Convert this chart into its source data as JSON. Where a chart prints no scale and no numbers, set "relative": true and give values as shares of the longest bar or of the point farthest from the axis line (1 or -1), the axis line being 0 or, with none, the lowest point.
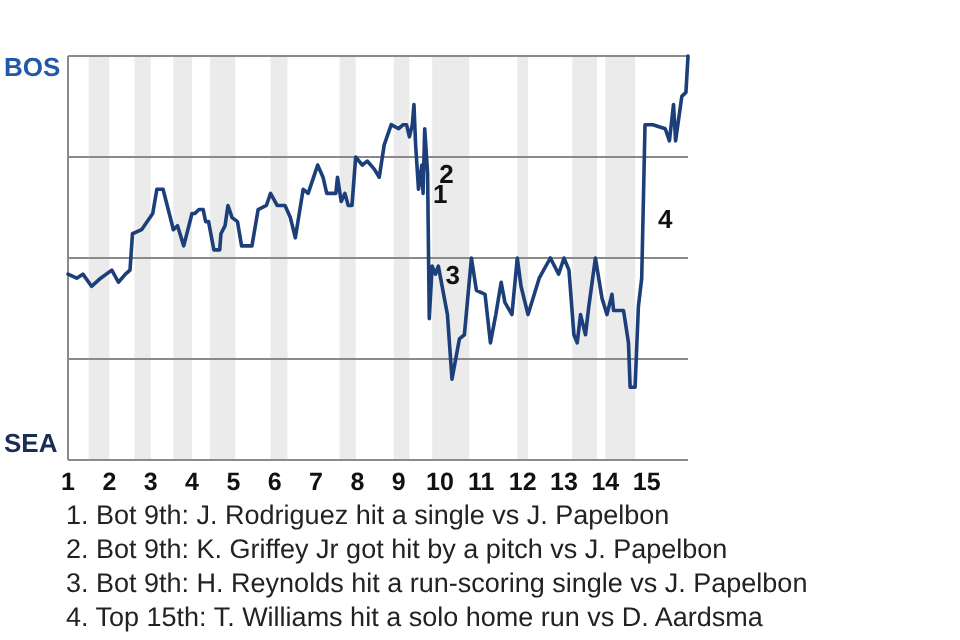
{
  "chart_data": {
    "type": "line",
    "relative": true,
    "grid": true,
    "xlim": [
      1,
      16
    ],
    "xticks": [
      1,
      2,
      3,
      4,
      5,
      6,
      7,
      8,
      9,
      10,
      11,
      12,
      13,
      14,
      15
    ],
    "bands": [
      {
        "axis": "x",
        "from": 1.5,
        "to": 2.0,
        "color": "#ebebeb"
      },
      {
        "axis": "x",
        "from": 2.61,
        "to": 3.0,
        "color": "#ebebeb"
      },
      {
        "axis": "x",
        "from": 3.55,
        "to": 4.0,
        "color": "#ebebeb"
      },
      {
        "axis": "x",
        "from": 4.43,
        "to": 5.05,
        "color": "#ebebeb"
      },
      {
        "axis": "x",
        "from": 5.9,
        "to": 6.31,
        "color": "#ebebeb"
      },
      {
        "axis": "x",
        "from": 7.57,
        "to": 7.96,
        "color": "#ebebeb"
      },
      {
        "axis": "x",
        "from": 8.88,
        "to": 9.26,
        "color": "#ebebeb"
      },
      {
        "axis": "x",
        "from": 9.81,
        "to": 10.71,
        "color": "#ebebeb"
      },
      {
        "axis": "x",
        "from": 11.87,
        "to": 12.13,
        "color": "#ebebeb"
      },
      {
        "axis": "x",
        "from": 13.2,
        "to": 13.8,
        "color": "#ebebeb"
      },
      {
        "axis": "x",
        "from": 14.0,
        "to": 14.72,
        "color": "#ebebeb"
      }
    ],
    "series": [
      {
        "color": "#1c3f7a",
        "x": [
          1.0,
          1.21,
          1.36,
          1.57,
          1.79,
          2.06,
          2.22,
          2.39,
          2.5,
          2.56,
          2.78,
          3.05,
          3.15,
          3.3,
          3.55,
          3.65,
          3.8,
          4.0,
          4.07,
          4.17,
          4.27,
          4.33,
          4.4,
          4.53,
          4.67,
          4.7,
          4.8,
          4.87,
          4.97,
          5.1,
          5.2,
          5.45,
          5.6,
          5.8,
          5.9,
          6.06,
          6.25,
          6.38,
          6.5,
          6.69,
          6.81,
          7.04,
          7.17,
          7.26,
          7.48,
          7.52,
          7.61,
          7.7,
          7.78,
          7.87,
          7.96,
          8.12,
          8.24,
          8.41,
          8.53,
          8.65,
          8.82,
          9.0,
          9.11,
          9.19,
          9.26,
          9.33,
          9.37,
          9.41,
          9.48,
          9.56,
          9.59,
          9.63,
          9.7,
          9.74,
          9.81,
          9.89,
          9.96,
          10.18,
          10.29,
          10.47,
          10.59,
          10.76,
          10.88,
          11.09,
          11.22,
          11.35,
          11.48,
          11.57,
          11.74,
          11.87,
          11.96,
          12.13,
          12.4,
          12.67,
          12.87,
          13.0,
          13.12,
          13.24,
          13.32,
          13.4,
          13.52,
          13.6,
          13.76,
          13.92,
          14.04,
          14.16,
          14.2,
          14.44,
          14.56,
          14.6,
          14.72,
          14.8,
          14.88,
          14.96,
          15.15,
          15.45,
          15.55,
          15.65,
          15.7,
          15.85,
          15.95,
          16.0
        ],
        "values": [
          0.46,
          0.45,
          0.46,
          0.43,
          0.45,
          0.47,
          0.44,
          0.46,
          0.47,
          0.56,
          0.57,
          0.61,
          0.67,
          0.67,
          0.57,
          0.58,
          0.53,
          0.61,
          0.61,
          0.62,
          0.62,
          0.59,
          0.59,
          0.52,
          0.52,
          0.56,
          0.58,
          0.63,
          0.6,
          0.59,
          0.53,
          0.53,
          0.62,
          0.63,
          0.66,
          0.63,
          0.63,
          0.6,
          0.55,
          0.67,
          0.66,
          0.73,
          0.7,
          0.66,
          0.66,
          0.7,
          0.64,
          0.66,
          0.63,
          0.63,
          0.75,
          0.73,
          0.74,
          0.72,
          0.7,
          0.78,
          0.83,
          0.82,
          0.83,
          0.83,
          0.8,
          0.83,
          0.88,
          0.78,
          0.67,
          0.73,
          0.66,
          0.82,
          0.71,
          0.35,
          0.48,
          0.46,
          0.48,
          0.36,
          0.2,
          0.3,
          0.31,
          0.5,
          0.42,
          0.41,
          0.29,
          0.36,
          0.44,
          0.39,
          0.36,
          0.5,
          0.43,
          0.36,
          0.45,
          0.5,
          0.46,
          0.5,
          0.47,
          0.31,
          0.29,
          0.36,
          0.31,
          0.38,
          0.5,
          0.4,
          0.36,
          0.41,
          0.37,
          0.37,
          0.29,
          0.18,
          0.18,
          0.38,
          0.45,
          0.83,
          0.83,
          0.82,
          0.79,
          0.88,
          0.79,
          0.9,
          0.91,
          1.0
        ]
      }
    ],
    "annotations": [
      "BOS",
      "SEA",
      {
        "text": "1",
        "x": 9.59,
        "y": 0.66
      },
      {
        "text": "2",
        "x": 9.74,
        "y": 0.71
      },
      {
        "text": "3",
        "x": 9.89,
        "y": 0.46
      },
      {
        "text": "4",
        "x": 15.03,
        "y": 0.6
      },
      "1. Bot 9th: J. Rodriguez hit a single vs J. Papelbon",
      "2. Bot 9th: K. Griffey Jr got hit by a pitch vs J. Papelbon",
      "3. Bot 9th: H. Reynolds hit a run-scoring single vs J. Papelbon",
      "4. Top 15th: T. Williams hit a solo home run vs D. Aardsma"
    ]
  }
}
